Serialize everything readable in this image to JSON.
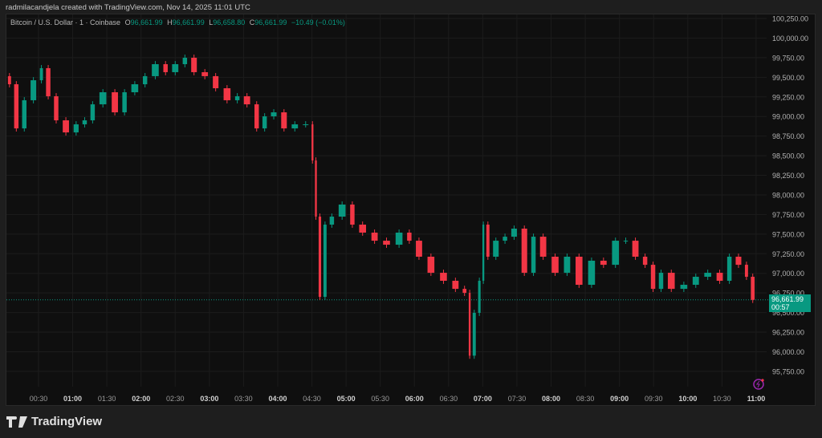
{
  "header": {
    "credit": "radmilacandjela created with TradingView.com, Nov 14, 2025 11:01 UTC"
  },
  "legend": {
    "symbol": "Bitcoin / U.S. Dollar · 1 · Coinbase",
    "open_label": "O",
    "open": "96,661.99",
    "high_label": "H",
    "high": "96,661.99",
    "low_label": "L",
    "low": "96,658.80",
    "close_label": "C",
    "close": "96,661.99",
    "change": "−10.49 (−0.01%)"
  },
  "last_price": {
    "price": "96,661.99",
    "countdown": "00:57"
  },
  "footer": {
    "brand": "TradingView"
  },
  "colors": {
    "up": "#089981",
    "down": "#f23645",
    "background": "#0f0f0f",
    "accent_icon": "#9c27b0"
  },
  "icons": {
    "replay": "lightning-circle-icon"
  },
  "chart_data": {
    "type": "candlestick",
    "title": "Bitcoin / U.S. Dollar · 1 · Coinbase",
    "ylim": [
      95650,
      100300
    ],
    "y_ticks": [
      "100,250.00",
      "100,000.00",
      "99,750.00",
      "99,500.00",
      "99,250.00",
      "99,000.00",
      "98,750.00",
      "98,500.00",
      "98,250.00",
      "98,000.00",
      "97,750.00",
      "97,500.00",
      "97,250.00",
      "97,000.00",
      "96,750.00",
      "96,500.00",
      "96,250.00",
      "96,000.00",
      "95,750.00"
    ],
    "x_ticks": [
      "00:30",
      "01:00",
      "01:30",
      "02:00",
      "02:30",
      "03:00",
      "03:30",
      "04:00",
      "04:30",
      "05:00",
      "05:30",
      "06:00",
      "06:30",
      "07:00",
      "07:30",
      "08:00",
      "08:30",
      "09:00",
      "09:30",
      "10:00",
      "10:30",
      "11:00"
    ],
    "bold_ticks": [
      "01:00",
      "02:00",
      "03:00",
      "04:00",
      "05:00",
      "06:00",
      "07:00",
      "08:00",
      "09:00",
      "10:00",
      "11:00"
    ],
    "grid": true,
    "last_value": 96661.99,
    "closes": [
      [
        "00:02",
        99514
      ],
      [
        "00:07",
        99411
      ],
      [
        "00:14",
        98848
      ],
      [
        "00:21",
        99207
      ],
      [
        "00:30",
        99462
      ],
      [
        "00:35",
        99616
      ],
      [
        "00:42",
        99258
      ],
      [
        "00:49",
        98951
      ],
      [
        "00:59",
        98797
      ],
      [
        "01:07",
        98900
      ],
      [
        "01:14",
        98951
      ],
      [
        "01:21",
        99155
      ],
      [
        "01:32",
        99309
      ],
      [
        "01:42",
        99053
      ],
      [
        "01:49",
        99309
      ],
      [
        "02:00",
        99411
      ],
      [
        "02:07",
        99514
      ],
      [
        "02:18",
        99667
      ],
      [
        "02:25",
        99565
      ],
      [
        "02:35",
        99667
      ],
      [
        "02:42",
        99749
      ],
      [
        "02:51",
        99565
      ],
      [
        "03:01",
        99514
      ],
      [
        "03:10",
        99360
      ],
      [
        "03:21",
        99207
      ],
      [
        "03:28",
        99258
      ],
      [
        "03:38",
        99155
      ],
      [
        "03:45",
        98848
      ],
      [
        "03:52",
        99002
      ],
      [
        "04:01",
        99053
      ],
      [
        "04:10",
        98848
      ],
      [
        "04:20",
        98900
      ],
      [
        "04:29",
        98900
      ],
      [
        "04:32",
        98439
      ],
      [
        "04:35",
        97723
      ],
      [
        "04:39",
        96700
      ],
      [
        "04:44",
        97621
      ],
      [
        "04:51",
        97723
      ],
      [
        "05:02",
        97877
      ],
      [
        "05:09",
        97621
      ],
      [
        "05:20",
        97519
      ],
      [
        "05:30",
        97416
      ],
      [
        "05:41",
        97365
      ],
      [
        "05:52",
        97519
      ],
      [
        "05:59",
        97416
      ],
      [
        "06:09",
        97212
      ],
      [
        "06:20",
        97007
      ],
      [
        "06:31",
        96905
      ],
      [
        "06:41",
        96802
      ],
      [
        "06:47",
        96751
      ],
      [
        "06:50",
        95950
      ],
      [
        "06:55",
        96496
      ],
      [
        "06:59",
        96905
      ],
      [
        "07:02",
        97621
      ],
      [
        "07:07",
        97212
      ],
      [
        "07:16",
        97416
      ],
      [
        "07:23",
        97467
      ],
      [
        "07:32",
        97570
      ],
      [
        "07:41",
        97007
      ],
      [
        "07:48",
        97467
      ],
      [
        "07:58",
        97212
      ],
      [
        "08:09",
        97007
      ],
      [
        "08:19",
        97212
      ],
      [
        "08:30",
        96854
      ],
      [
        "08:41",
        97161
      ],
      [
        "08:51",
        97109
      ],
      [
        "09:02",
        97416
      ],
      [
        "09:09",
        97416
      ],
      [
        "09:19",
        97212
      ],
      [
        "09:26",
        97109
      ],
      [
        "09:33",
        96802
      ],
      [
        "09:40",
        97007
      ],
      [
        "09:51",
        96802
      ],
      [
        "10:02",
        96854
      ],
      [
        "10:12",
        96956
      ],
      [
        "10:23",
        97007
      ],
      [
        "10:33",
        96905
      ],
      [
        "10:40",
        97212
      ],
      [
        "10:49",
        97109
      ],
      [
        "10:54",
        96956
      ],
      [
        "11:00",
        96661.99
      ]
    ]
  }
}
